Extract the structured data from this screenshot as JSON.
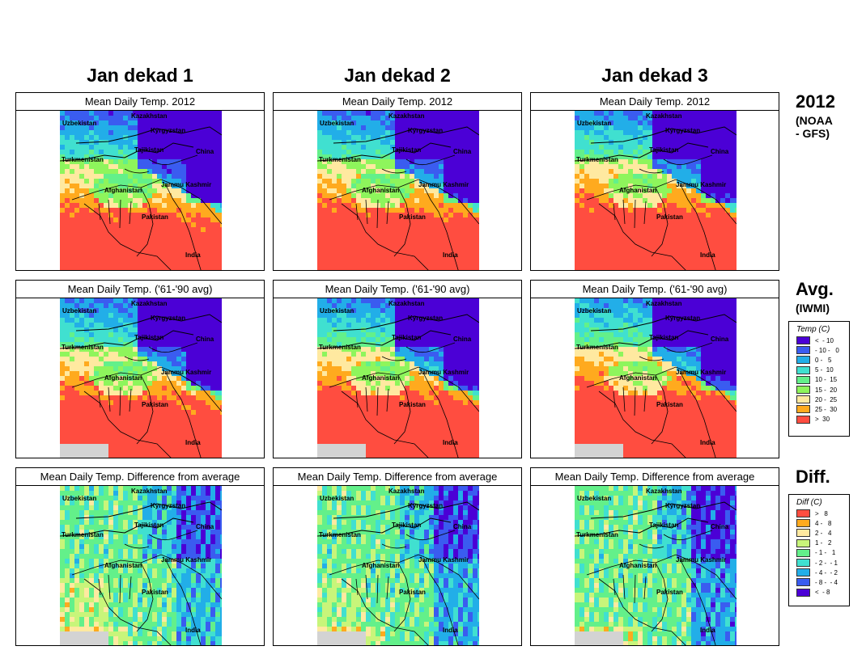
{
  "columns": [
    "Jan dekad 1",
    "Jan dekad 2",
    "Jan dekad 3"
  ],
  "rows": [
    {
      "title": "Mean Daily Temp. 2012",
      "label_big": "2012",
      "label_small": [
        "(NOAA",
        "- GFS)"
      ],
      "kind": "temp2012"
    },
    {
      "title": "Mean Daily Temp. ('61-'90 avg)",
      "label_big": "Avg.",
      "label_small": [
        "(IWMI)"
      ],
      "kind": "tempavg"
    },
    {
      "title": "Mean Daily Temp. Difference from average",
      "label_big": "Diff.",
      "label_small": [],
      "kind": "diff"
    }
  ],
  "map_labels": {
    "kazakhstan": "Kazakhstan",
    "uzbekistan": "Uzbekistan",
    "kyrgyzstan": "Kyrgyzstan",
    "tajikistan": "Tajikistan",
    "china": "China",
    "turkmenistan": "Turkmenistan",
    "afghanistan": "Afghanistan",
    "jammu_kashmir": "Jammu Kashmir",
    "pakistan": "Pakistan",
    "india": "India"
  },
  "temp_legend": {
    "title": "Temp (C)",
    "items": [
      {
        "label": "<  - 10",
        "color": "#4b00d6"
      },
      {
        "label": "- 10 -   0",
        "color": "#3a5cf0"
      },
      {
        "label": "0 -   5",
        "color": "#22aee8"
      },
      {
        "label": "5 -  10",
        "color": "#40e0d0"
      },
      {
        "label": "10 -  15",
        "color": "#63f08a"
      },
      {
        "label": "15 -  20",
        "color": "#8ef55c"
      },
      {
        "label": "20 -  25",
        "color": "#ffe9a0"
      },
      {
        "label": "25 -  30",
        "color": "#ffaa1e"
      },
      {
        "label": ">  30",
        "color": "#ff4d40"
      }
    ]
  },
  "diff_legend": {
    "title": "Diff (C)",
    "items": [
      {
        "label": ">   8",
        "color": "#ff4d40"
      },
      {
        "label": "4 -   8",
        "color": "#ffaa1e"
      },
      {
        "label": "2 -   4",
        "color": "#ffe9a0"
      },
      {
        "label": "1 -   2",
        "color": "#c8f57a"
      },
      {
        "label": "- 1 -   1",
        "color": "#63f08a"
      },
      {
        "label": "- 2 -  - 1",
        "color": "#40e0d0"
      },
      {
        "label": "- 4 -  - 2",
        "color": "#22aee8"
      },
      {
        "label": "- 8 -  - 4",
        "color": "#3a5cf0"
      },
      {
        "label": "<  - 8",
        "color": "#4b00d6"
      }
    ]
  }
}
